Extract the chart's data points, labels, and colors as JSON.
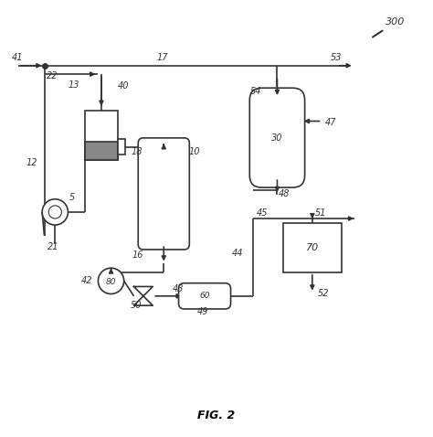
{
  "background": "#ffffff",
  "line_color": "#333333",
  "lw": 1.2
}
